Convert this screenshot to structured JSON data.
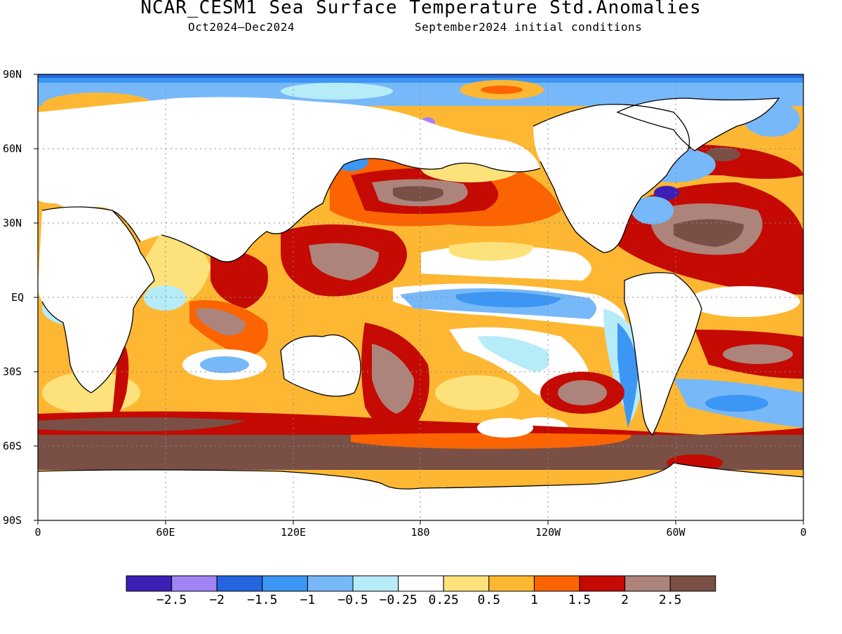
{
  "header": {
    "title": "NCAR_CESM1 Sea Surface Temperature Std.Anomalies",
    "period": "Oct2024–Dec2024",
    "init": "September2024 initial conditions"
  },
  "map": {
    "lat_labels": [
      "90N",
      "60N",
      "30N",
      "EQ",
      "30S",
      "60S",
      "90S"
    ],
    "lon_labels": [
      "0",
      "60E",
      "120E",
      "180",
      "120W",
      "60W",
      "0"
    ],
    "grid": true,
    "land_color": "#ffffff",
    "coastline_color": "#000000"
  },
  "colorbar": {
    "colors": [
      "#3c1fb4",
      "#a183f5",
      "#2566e0",
      "#3c96f4",
      "#77b8f8",
      "#b6ebf8",
      "#ffffff",
      "#fde27c",
      "#fdb733",
      "#fb6400",
      "#c40a02",
      "#ad847b",
      "#7a4f45"
    ],
    "labels": [
      "-2.5",
      "-2",
      "-1.5",
      "-1",
      "-0.5",
      "-0.25",
      "0.25",
      "0.5",
      "1",
      "1.5",
      "2",
      "2.5"
    ]
  }
}
